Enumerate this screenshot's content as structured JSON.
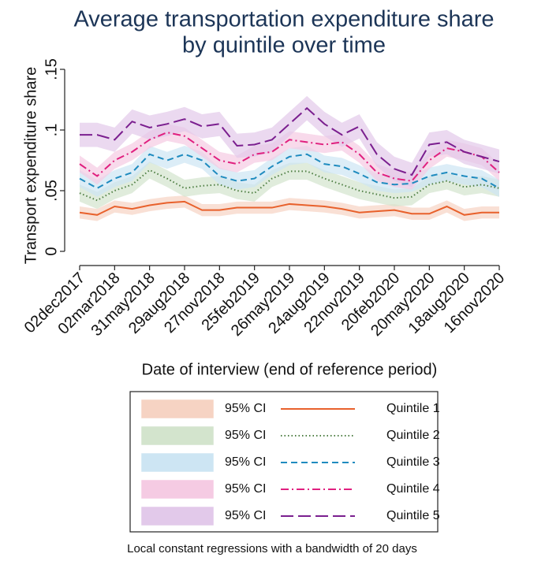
{
  "chart_data": {
    "type": "line",
    "title": [
      "Average transportation expenditure share",
      "by quintile over time"
    ],
    "ylabel": "Transport expenditure share",
    "xlabel": "Date of interview (end of reference period)",
    "note": "Local constant regressions with a bandwidth of 20 days",
    "x": [
      "2017-12-02",
      "2018-01-16",
      "2018-03-02",
      "2018-04-16",
      "2018-05-31",
      "2018-07-15",
      "2018-08-29",
      "2018-10-13",
      "2018-11-27",
      "2019-01-11",
      "2019-02-25",
      "2019-04-11",
      "2019-05-26",
      "2019-07-10",
      "2019-08-24",
      "2019-10-08",
      "2019-11-22",
      "2020-01-06",
      "2020-02-20",
      "2020-04-05",
      "2020-05-20",
      "2020-07-04",
      "2020-08-18",
      "2020-10-02",
      "2020-11-16"
    ],
    "xlim": [
      "2017-12-02",
      "2020-11-16"
    ],
    "xticks": [
      {
        "value": "2017-12-02",
        "label": "02dec2017"
      },
      {
        "value": "2018-03-02",
        "label": "02mar2018"
      },
      {
        "value": "2018-05-31",
        "label": "31may2018"
      },
      {
        "value": "2018-08-29",
        "label": "29aug2018"
      },
      {
        "value": "2018-11-27",
        "label": "27nov2018"
      },
      {
        "value": "2019-02-25",
        "label": "25feb2019"
      },
      {
        "value": "2019-05-26",
        "label": "26may2019"
      },
      {
        "value": "2019-08-24",
        "label": "24aug2019"
      },
      {
        "value": "2019-11-22",
        "label": "22nov2019"
      },
      {
        "value": "2020-02-20",
        "label": "20feb2020"
      },
      {
        "value": "2020-05-20",
        "label": "20may2020"
      },
      {
        "value": "2020-08-18",
        "label": "18aug2020"
      },
      {
        "value": "2020-11-16",
        "label": "16nov2020"
      }
    ],
    "ylim": [
      0,
      0.15
    ],
    "yticks": [
      0,
      {
        "value": 0.05,
        "label": ".05"
      },
      {
        "value": 0.1,
        "label": ".1"
      },
      {
        "value": 0.15,
        "label": ".15"
      }
    ],
    "grid": false,
    "series": [
      {
        "name": "Quintile 1",
        "ci_label": "95% CI",
        "color": "#e8612c",
        "ci_color": "#f6d3c3",
        "dash": "solid",
        "values": [
          0.032,
          0.03,
          0.037,
          0.035,
          0.038,
          0.04,
          0.041,
          0.034,
          0.034,
          0.036,
          0.036,
          0.036,
          0.039,
          0.038,
          0.037,
          0.035,
          0.032,
          0.033,
          0.034,
          0.031,
          0.031,
          0.037,
          0.03,
          0.032,
          0.032
        ],
        "errors": [
          0.005,
          0.005,
          0.005,
          0.005,
          0.005,
          0.005,
          0.005,
          0.005,
          0.005,
          0.005,
          0.005,
          0.005,
          0.005,
          0.005,
          0.005,
          0.005,
          0.005,
          0.005,
          0.005,
          0.005,
          0.005,
          0.005,
          0.005,
          0.005,
          0.005
        ]
      },
      {
        "name": "Quintile 2",
        "ci_label": "95% CI",
        "color": "#4f7f44",
        "ci_color": "#d3e4cd",
        "dash": "dot",
        "values": [
          0.048,
          0.042,
          0.05,
          0.055,
          0.067,
          0.06,
          0.052,
          0.054,
          0.055,
          0.05,
          0.048,
          0.06,
          0.066,
          0.066,
          0.06,
          0.055,
          0.05,
          0.047,
          0.044,
          0.045,
          0.055,
          0.058,
          0.053,
          0.055,
          0.052
        ],
        "errors": [
          0.007,
          0.007,
          0.007,
          0.007,
          0.007,
          0.007,
          0.007,
          0.007,
          0.007,
          0.007,
          0.007,
          0.007,
          0.007,
          0.007,
          0.007,
          0.007,
          0.007,
          0.007,
          0.007,
          0.007,
          0.007,
          0.007,
          0.007,
          0.007,
          0.007
        ]
      },
      {
        "name": "Quintile 3",
        "ci_label": "95% CI",
        "color": "#1f8bbf",
        "ci_color": "#cde5f3",
        "dash": "dash",
        "values": [
          0.06,
          0.052,
          0.06,
          0.065,
          0.08,
          0.075,
          0.08,
          0.075,
          0.062,
          0.058,
          0.06,
          0.07,
          0.078,
          0.08,
          0.072,
          0.07,
          0.064,
          0.057,
          0.055,
          0.056,
          0.062,
          0.065,
          0.062,
          0.06,
          0.052
        ],
        "errors": [
          0.007,
          0.007,
          0.007,
          0.007,
          0.007,
          0.007,
          0.007,
          0.007,
          0.007,
          0.007,
          0.007,
          0.007,
          0.007,
          0.007,
          0.007,
          0.007,
          0.007,
          0.007,
          0.007,
          0.007,
          0.007,
          0.007,
          0.007,
          0.007,
          0.007
        ]
      },
      {
        "name": "Quintile 4",
        "ci_label": "95% CI",
        "color": "#e0207f",
        "ci_color": "#f5cbe3",
        "dash": "dashdot",
        "values": [
          0.072,
          0.062,
          0.075,
          0.082,
          0.092,
          0.098,
          0.095,
          0.085,
          0.075,
          0.072,
          0.08,
          0.082,
          0.092,
          0.09,
          0.088,
          0.09,
          0.08,
          0.065,
          0.06,
          0.058,
          0.075,
          0.085,
          0.082,
          0.078,
          0.065
        ],
        "errors": [
          0.007,
          0.007,
          0.007,
          0.007,
          0.007,
          0.007,
          0.007,
          0.007,
          0.007,
          0.007,
          0.007,
          0.007,
          0.007,
          0.007,
          0.007,
          0.007,
          0.007,
          0.007,
          0.007,
          0.007,
          0.007,
          0.007,
          0.007,
          0.007,
          0.007
        ]
      },
      {
        "name": "Quintile 5",
        "ci_label": "95% CI",
        "color": "#7b1f8f",
        "ci_color": "#e2c9ea",
        "dash": "longdash",
        "values": [
          0.096,
          0.096,
          0.092,
          0.107,
          0.102,
          0.105,
          0.109,
          0.103,
          0.105,
          0.087,
          0.088,
          0.092,
          0.105,
          0.118,
          0.105,
          0.096,
          0.103,
          0.08,
          0.068,
          0.063,
          0.088,
          0.09,
          0.082,
          0.078,
          0.074
        ],
        "errors": [
          0.01,
          0.01,
          0.01,
          0.01,
          0.01,
          0.01,
          0.01,
          0.01,
          0.01,
          0.01,
          0.01,
          0.01,
          0.01,
          0.01,
          0.01,
          0.01,
          0.01,
          0.01,
          0.01,
          0.01,
          0.01,
          0.01,
          0.01,
          0.01,
          0.01
        ]
      }
    ]
  }
}
